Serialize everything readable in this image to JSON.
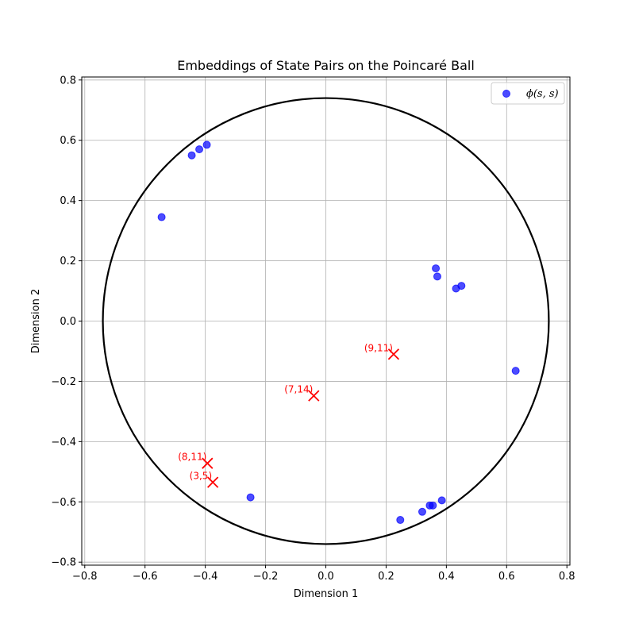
{
  "chart_data": {
    "type": "scatter",
    "title": "Embeddings of State Pairs on the Poincaré Ball",
    "xlabel": "Dimension 1",
    "ylabel": "Dimension 2",
    "xlim": [
      -0.81,
      0.81
    ],
    "ylim": [
      -0.81,
      0.81
    ],
    "grid": true,
    "legend_position": "top-right",
    "xticks": [
      -0.8,
      -0.6,
      -0.4,
      -0.2,
      0.0,
      0.2,
      0.4,
      0.6,
      0.8
    ],
    "yticks": [
      -0.8,
      -0.6,
      -0.4,
      -0.2,
      0.0,
      0.2,
      0.4,
      0.6,
      0.8
    ],
    "xtick_labels": [
      "−0.8",
      "−0.6",
      "−0.4",
      "−0.2",
      "0.0",
      "0.2",
      "0.4",
      "0.6",
      "0.8"
    ],
    "ytick_labels": [
      "−0.8",
      "−0.6",
      "−0.4",
      "−0.2",
      "0.0",
      "0.2",
      "0.4",
      "0.6",
      "0.8"
    ],
    "boundary_circle_radius": 0.74,
    "series": [
      {
        "name": "ϕ(s, s)",
        "marker": "circle",
        "color": "#0000ff",
        "points": [
          [
            -0.395,
            0.585
          ],
          [
            -0.42,
            0.57
          ],
          [
            -0.445,
            0.55
          ],
          [
            -0.545,
            0.345
          ],
          [
            0.365,
            0.175
          ],
          [
            0.37,
            0.148
          ],
          [
            0.45,
            0.117
          ],
          [
            0.432,
            0.108
          ],
          [
            0.63,
            -0.165
          ],
          [
            -0.25,
            -0.585
          ],
          [
            0.385,
            -0.595
          ],
          [
            0.345,
            -0.612
          ],
          [
            0.355,
            -0.612
          ],
          [
            0.32,
            -0.633
          ],
          [
            0.247,
            -0.66
          ]
        ]
      },
      {
        "marker": "x",
        "color": "#ff0000",
        "points": [
          {
            "x": 0.225,
            "y": -0.11,
            "label": "(9,11)"
          },
          {
            "x": -0.04,
            "y": -0.248,
            "label": "(7,14)"
          },
          {
            "x": -0.393,
            "y": -0.472,
            "label": "(8,11)"
          },
          {
            "x": -0.375,
            "y": -0.535,
            "label": "(3,5)"
          }
        ]
      }
    ]
  }
}
